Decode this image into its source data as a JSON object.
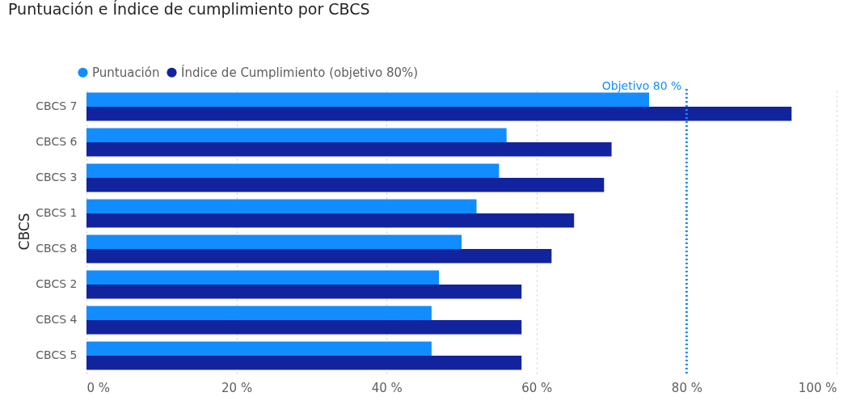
{
  "chart_data": {
    "type": "bar",
    "orientation": "horizontal",
    "title": "Puntuación e Índice de cumplimiento por CBCS",
    "ylabel": "CBCS",
    "categories": [
      "CBCS 7",
      "CBCS 6",
      "CBCS 3",
      "CBCS 1",
      "CBCS 8",
      "CBCS 2",
      "CBCS 4",
      "CBCS 5"
    ],
    "series": [
      {
        "name": "Puntuación",
        "color": "#118dff",
        "values": [
          75,
          56,
          55,
          52,
          50,
          47,
          46,
          46
        ]
      },
      {
        "name": "Índice de Cumplimiento (objetivo 80%)",
        "color": "#12239e",
        "values": [
          94,
          70,
          69,
          65,
          62,
          58,
          58,
          58
        ]
      }
    ],
    "xlim": [
      0,
      100
    ],
    "xticks": [
      {
        "value": 0,
        "label": "0 %"
      },
      {
        "value": 20,
        "label": "20 %"
      },
      {
        "value": 40,
        "label": "40 %"
      },
      {
        "value": 60,
        "label": "60 %"
      },
      {
        "value": 80,
        "label": "80 %"
      },
      {
        "value": 100,
        "label": "100 %"
      }
    ],
    "ref_lines": [
      {
        "axis": "x",
        "value": 80,
        "label": "Objetivo 80 %",
        "color": "#118dff",
        "line_style": "dotted"
      }
    ],
    "grid": "x",
    "legend": "top left"
  }
}
